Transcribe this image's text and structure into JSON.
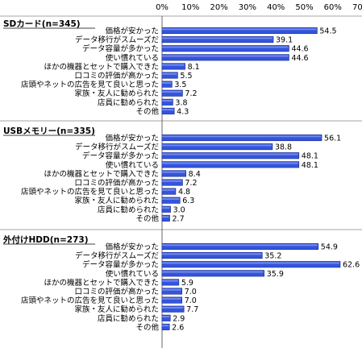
{
  "chart_data": {
    "type": "bar",
    "orientation": "horizontal",
    "x_ticks": [
      "0%",
      "10%",
      "20%",
      "30%",
      "40%",
      "50%",
      "60%",
      "70%"
    ],
    "xlim": [
      0,
      70
    ],
    "grid": false,
    "bar_color": "#3355dd",
    "groups": [
      {
        "name": "SDカード(n=345)",
        "categories": [
          "価格が安かった",
          "データ移行がスムーズだ",
          "データ容量が多かった",
          "使い慣れている",
          "ほかの機器とセットで購入できた",
          "口コミの評価が高かった",
          "店頭やネットの広告を見て良いと思った",
          "家族・友人に勧められた",
          "店員に勧められた",
          "その他"
        ],
        "values": [
          54.5,
          39.1,
          44.6,
          44.6,
          8.1,
          5.5,
          3.5,
          7.2,
          3.8,
          4.3
        ],
        "value_labels": [
          "54.5",
          "39.1",
          "44.6",
          "44.6",
          "8.1",
          "5.5",
          "3.5",
          "7.2",
          "3.8",
          "4.3"
        ]
      },
      {
        "name": "USBメモリー(n=335)",
        "categories": [
          "価格が安かった",
          "データ移行がスムーズだ",
          "データ容量が多かった",
          "使い慣れている",
          "ほかの機器とセットで購入できた",
          "口コミの評価が高かった",
          "店頭やネットの広告を見て良いと思った",
          "家族・友人に勧められた",
          "店員に勧められた",
          "その他"
        ],
        "values": [
          56.1,
          38.8,
          48.1,
          48.1,
          8.4,
          7.2,
          4.8,
          6.3,
          3.0,
          2.7
        ],
        "value_labels": [
          "56.1",
          "38.8",
          "48.1",
          "48.1",
          "8.4",
          "7.2",
          "4.8",
          "6.3",
          "3.0",
          "2.7"
        ]
      },
      {
        "name": "外付けHDD(n=273)",
        "categories": [
          "価格が安かった",
          "データ移行がスムーズだ",
          "データ容量が多かった",
          "使い慣れている",
          "ほかの機器とセットで購入できた",
          "口コミの評価が高かった",
          "店頭やネットの広告を見て良いと思った",
          "家族・友人に勧められた",
          "店員に勧められた",
          "その他"
        ],
        "values": [
          54.9,
          35.2,
          62.6,
          35.9,
          5.9,
          7.0,
          7.0,
          7.7,
          2.9,
          2.6
        ],
        "value_labels": [
          "54.9",
          "35.2",
          "62.6",
          "35.9",
          "5.9",
          "7.0",
          "7.0",
          "7.7",
          "2.9",
          "2.6"
        ]
      }
    ]
  }
}
